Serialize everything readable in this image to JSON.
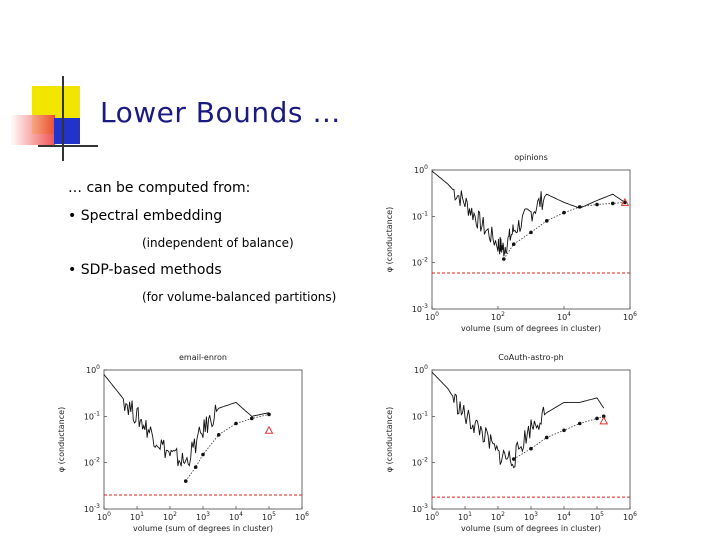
{
  "slide": {
    "title": "Lower Bounds …",
    "intro": "… can be computed from:",
    "bullets": [
      {
        "label": "• Spectral embedding",
        "note": "(independent of balance)"
      },
      {
        "label": "• SDP-based methods",
        "note": "(for volume-balanced partitions)"
      }
    ],
    "colors": {
      "title": "#1a1a80",
      "deco_yellow": "#f2e600",
      "deco_red": "#ee3333",
      "deco_blue": "#2233cc",
      "lower_bound": "#dd2222",
      "marker": "#dd3333"
    }
  },
  "chart_data": [
    {
      "type": "line",
      "title": "opinions",
      "xlabel": "volume (sum of degrees in cluster)",
      "ylabel": "φ (conductance)",
      "xscale": "log",
      "yscale": "log",
      "xlim": [
        1,
        1000000
      ],
      "ylim": [
        0.001,
        1
      ],
      "xticks": [
        "10^0",
        "10^2",
        "10^4",
        "10^6"
      ],
      "yticks": [
        "10^0",
        "10^-1",
        "10^-2",
        "10^-3"
      ],
      "lower_bound": 0.006,
      "series": [
        {
          "name": "ncp-profile",
          "style": "solid-noisy",
          "x": [
            1,
            3,
            10,
            30,
            100,
            150,
            300,
            1000,
            3000,
            10000,
            30000,
            100000,
            300000,
            700000
          ],
          "y": [
            0.95,
            0.5,
            0.2,
            0.07,
            0.025,
            0.02,
            0.05,
            0.12,
            0.3,
            0.2,
            0.15,
            0.22,
            0.3,
            0.2
          ]
        },
        {
          "name": "spectral-lower-bound",
          "style": "dotted-markers",
          "x": [
            150,
            300,
            1000,
            3000,
            10000,
            30000,
            100000,
            300000,
            700000
          ],
          "y": [
            0.012,
            0.025,
            0.045,
            0.08,
            0.12,
            0.16,
            0.18,
            0.19,
            0.2
          ]
        }
      ],
      "sdp_marker": {
        "x": 700000,
        "y": 0.2
      }
    },
    {
      "type": "line",
      "title": "email-enron",
      "xlabel": "volume (sum of degrees in cluster)",
      "ylabel": "φ (conductance)",
      "xscale": "log",
      "yscale": "log",
      "xlim": [
        1,
        1000000
      ],
      "ylim": [
        0.001,
        1
      ],
      "xticks": [
        "10^0",
        "10^1",
        "10^2",
        "10^3",
        "10^4",
        "10^5",
        "10^6"
      ],
      "yticks": [
        "10^0",
        "10^-1",
        "10^-2",
        "10^-3"
      ],
      "lower_bound": 0.002,
      "series": [
        {
          "name": "ncp-profile",
          "style": "solid-noisy",
          "x": [
            1,
            3,
            10,
            30,
            100,
            300,
            1000,
            3000,
            10000,
            30000,
            100000
          ],
          "y": [
            0.8,
            0.3,
            0.1,
            0.04,
            0.015,
            0.01,
            0.05,
            0.15,
            0.2,
            0.1,
            0.12
          ]
        },
        {
          "name": "spectral-lower-bound",
          "style": "dotted-markers",
          "x": [
            300,
            600,
            1000,
            3000,
            10000,
            30000,
            100000
          ],
          "y": [
            0.004,
            0.008,
            0.015,
            0.04,
            0.07,
            0.09,
            0.11
          ]
        }
      ],
      "sdp_marker": {
        "x": 100000,
        "y": 0.05
      }
    },
    {
      "type": "line",
      "title": "CoAuth-astro-ph",
      "xlabel": "volume (sum of degrees in cluster)",
      "ylabel": "φ (conductance)",
      "xscale": "log",
      "yscale": "log",
      "xlim": [
        1,
        1000000
      ],
      "ylim": [
        0.001,
        1
      ],
      "xticks": [
        "10^0",
        "10^1",
        "10^2",
        "10^3",
        "10^4",
        "10^5",
        "10^6"
      ],
      "yticks": [
        "10^0",
        "10^-1",
        "10^-2",
        "10^-3"
      ],
      "lower_bound": 0.0018,
      "series": [
        {
          "name": "ncp-profile",
          "style": "solid-noisy",
          "x": [
            1,
            3,
            10,
            30,
            100,
            300,
            1000,
            3000,
            10000,
            30000,
            100000,
            160000
          ],
          "y": [
            0.9,
            0.4,
            0.1,
            0.05,
            0.015,
            0.012,
            0.06,
            0.12,
            0.2,
            0.2,
            0.25,
            0.15
          ]
        },
        {
          "name": "spectral-lower-bound",
          "style": "dotted-markers",
          "x": [
            300,
            1000,
            3000,
            10000,
            30000,
            100000,
            160000
          ],
          "y": [
            0.012,
            0.02,
            0.035,
            0.05,
            0.07,
            0.09,
            0.1
          ]
        }
      ],
      "sdp_marker": {
        "x": 160000,
        "y": 0.08
      }
    }
  ]
}
